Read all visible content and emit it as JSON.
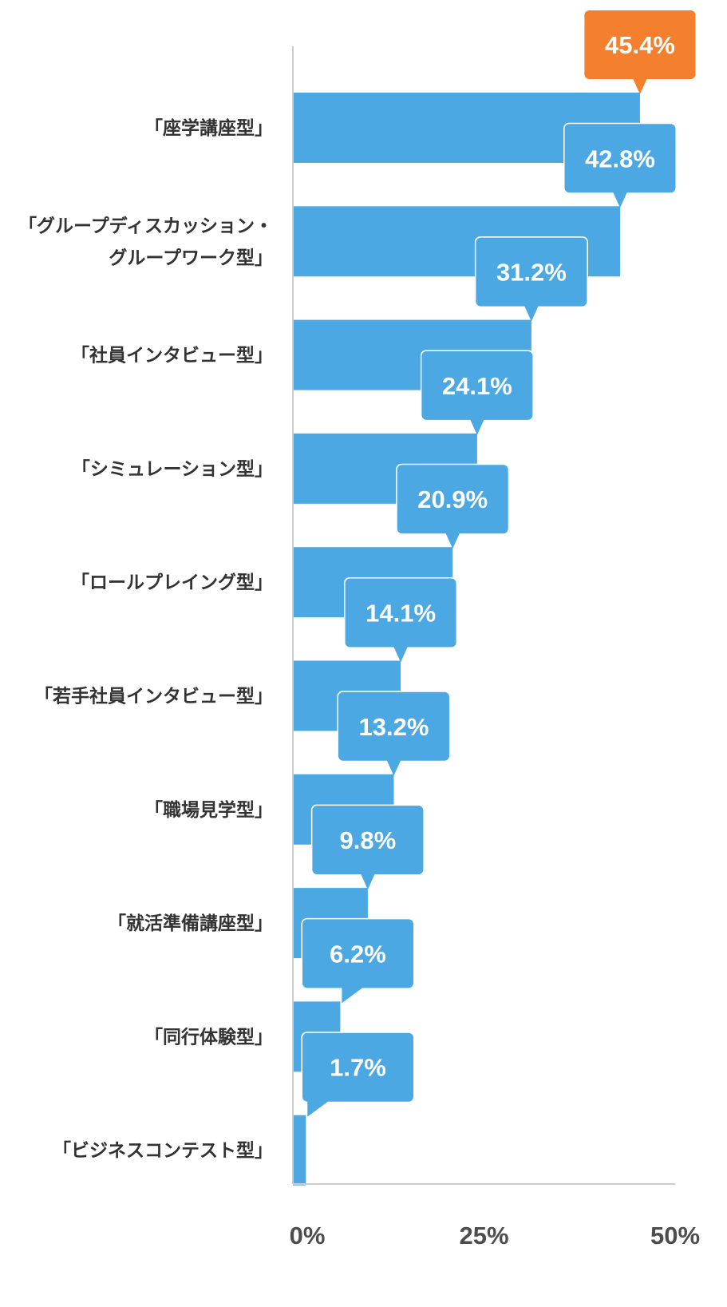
{
  "chart_data": {
    "type": "bar",
    "orientation": "horizontal",
    "categories": [
      [
        "「座学講座型」"
      ],
      [
        "「グループディスカッション・",
        "グループワーク型」"
      ],
      [
        "「社員インタビュー型」"
      ],
      [
        "「シミュレーション型」"
      ],
      [
        "「ロールプレイング型」"
      ],
      [
        "「若手社員インタビュー型」"
      ],
      [
        "「職場見学型」"
      ],
      [
        "「就活準備講座型」"
      ],
      [
        "「同行体験型」"
      ],
      [
        "「ビジネスコンテスト型」"
      ]
    ],
    "values": [
      45.4,
      42.8,
      31.2,
      24.1,
      20.9,
      14.1,
      13.2,
      9.8,
      6.2,
      1.7
    ],
    "data_labels": [
      "45.4%",
      "42.8%",
      "31.2%",
      "24.1%",
      "20.9%",
      "14.1%",
      "13.2%",
      "9.8%",
      "6.2%",
      "1.7%"
    ],
    "x_ticks": [
      0,
      25,
      50
    ],
    "x_tick_labels": [
      "0%",
      "25%",
      "50%"
    ],
    "xlim": [
      0,
      50
    ],
    "grid": false,
    "colors": {
      "bar": "#4ca8e3",
      "highlight_callout": "#f47f2c",
      "callout": "#4ca8e3",
      "axis": "#cccccc",
      "label_text": "#333333",
      "tick_text": "#4d4d4d"
    },
    "highlight_index": 0
  }
}
